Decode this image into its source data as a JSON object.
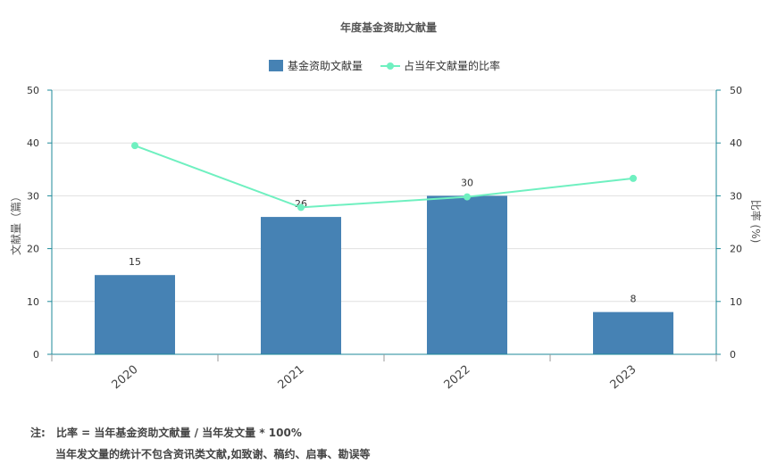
{
  "chart_data": {
    "type": "bar+line",
    "title": "年度基金资助文献量",
    "categories": [
      "2020",
      "2021",
      "2022",
      "2023"
    ],
    "series": [
      {
        "name": "基金资助文献量",
        "type": "bar",
        "axis": "left",
        "values": [
          15,
          26,
          30,
          8
        ]
      },
      {
        "name": "占当年文献量的比率",
        "type": "line",
        "axis": "right",
        "values": [
          39.5,
          27.8,
          29.8,
          33.3
        ]
      }
    ],
    "ylabel": "文献量（篇）",
    "y2label": "比率 (%)",
    "ylim": [
      0,
      50
    ],
    "y2lim": [
      0,
      50
    ],
    "yticks": [
      0,
      10,
      20,
      30,
      40,
      50
    ],
    "y2ticks": [
      0,
      10,
      20,
      30,
      40,
      50
    ],
    "grid": true,
    "legend_position": "top-center"
  },
  "colors": {
    "bar": "#4682b4",
    "line": "#6ff0c0",
    "axis": "#1e8a9a",
    "grid": "#e0e0e0"
  },
  "notes": {
    "label": "注:",
    "line1": "比率 = 当年基金资助文献量 / 当年发文量 * 100%",
    "line2": "当年发文量的统计不包含资讯类文献,如致谢、稿约、启事、勘误等"
  }
}
